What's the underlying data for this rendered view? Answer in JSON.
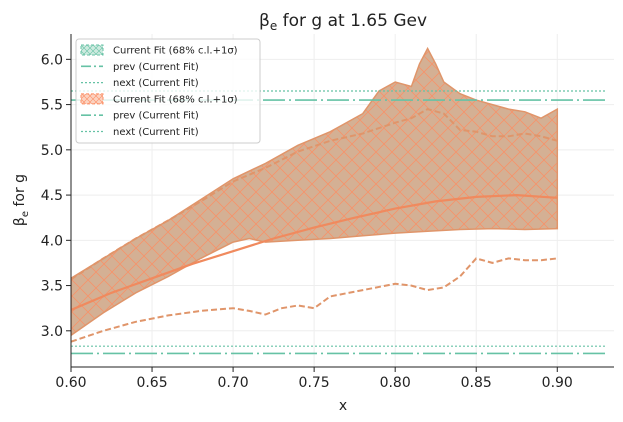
{
  "chart_data": {
    "type": "area",
    "title": "β_e for g at 1.65 Gev",
    "title_main": "β",
    "title_sub": "e",
    "title_rest": " for g at 1.65 Gev",
    "xlabel": "x",
    "ylabel_main": "β",
    "ylabel_sub": "e",
    "ylabel_rest": " for g",
    "xlim": [
      0.6,
      0.935
    ],
    "ylim": [
      2.6,
      6.28
    ],
    "grid": true,
    "legend_placement": "top-left",
    "x_ticks": [
      "0.60",
      "0.65",
      "0.70",
      "0.75",
      "0.80",
      "0.85",
      "0.90"
    ],
    "y_ticks": [
      "3.0",
      "3.5",
      "4.0",
      "4.5",
      "5.0",
      "5.5",
      "6.0"
    ],
    "legend": [
      {
        "label": "Current Fit (68% c.l.+1σ)",
        "kind": "band",
        "color": "#66c2a5"
      },
      {
        "label": "prev (Current Fit)",
        "kind": "dashdot",
        "color": "#66c2a5"
      },
      {
        "label": "next (Current Fit)",
        "kind": "dotted",
        "color": "#66c2a5"
      },
      {
        "label": "Current Fit (68% c.l.+1σ)",
        "kind": "band",
        "color": "#fc8d62"
      },
      {
        "label": "prev (Current Fit)",
        "kind": "dashdot",
        "color": "#66c2a5"
      },
      {
        "label": "next (Current Fit)",
        "kind": "dotted",
        "color": "#66c2a5"
      }
    ],
    "colors": {
      "teal": "#66c2a5",
      "orange": "#fc8d62",
      "band_fill": "#d4b094",
      "band_edge": "#e0956a",
      "dashed": "#e0956a"
    },
    "series": [
      {
        "role": "central-fit",
        "x": [
          0.6,
          0.625,
          0.65,
          0.675,
          0.7,
          0.725,
          0.75,
          0.775,
          0.8,
          0.825,
          0.85,
          0.875,
          0.9
        ],
        "values": [
          3.23,
          3.42,
          3.58,
          3.74,
          3.88,
          4.02,
          4.14,
          4.25,
          4.35,
          4.43,
          4.48,
          4.5,
          4.47
        ]
      },
      {
        "role": "band-upper",
        "x": [
          0.6,
          0.62,
          0.64,
          0.66,
          0.68,
          0.7,
          0.72,
          0.74,
          0.76,
          0.78,
          0.79,
          0.8,
          0.81,
          0.815,
          0.82,
          0.825,
          0.83,
          0.84,
          0.85,
          0.86,
          0.87,
          0.88,
          0.89,
          0.9
        ],
        "values": [
          3.58,
          3.8,
          4.02,
          4.22,
          4.45,
          4.68,
          4.85,
          5.05,
          5.2,
          5.4,
          5.65,
          5.75,
          5.7,
          5.95,
          6.12,
          5.95,
          5.75,
          5.62,
          5.55,
          5.5,
          5.45,
          5.42,
          5.35,
          5.45
        ]
      },
      {
        "role": "band-lower",
        "x": [
          0.6,
          0.62,
          0.64,
          0.66,
          0.68,
          0.7,
          0.71,
          0.72,
          0.74,
          0.76,
          0.78,
          0.8,
          0.82,
          0.84,
          0.86,
          0.88,
          0.9
        ],
        "values": [
          2.95,
          3.2,
          3.42,
          3.6,
          3.8,
          3.98,
          4.02,
          3.98,
          4.0,
          4.02,
          4.05,
          4.08,
          4.1,
          4.12,
          4.13,
          4.12,
          4.13
        ]
      },
      {
        "role": "dashed-upper",
        "x": [
          0.6,
          0.62,
          0.64,
          0.66,
          0.68,
          0.7,
          0.72,
          0.74,
          0.76,
          0.78,
          0.8,
          0.81,
          0.82,
          0.83,
          0.84,
          0.85,
          0.86,
          0.87,
          0.88,
          0.89,
          0.9
        ],
        "values": [
          3.57,
          3.8,
          4.02,
          4.22,
          4.43,
          4.65,
          4.8,
          4.98,
          5.1,
          5.18,
          5.3,
          5.35,
          5.45,
          5.4,
          5.22,
          5.2,
          5.15,
          5.15,
          5.18,
          5.15,
          5.1
        ]
      },
      {
        "role": "dashed-lower",
        "x": [
          0.6,
          0.62,
          0.64,
          0.66,
          0.68,
          0.7,
          0.71,
          0.72,
          0.73,
          0.74,
          0.75,
          0.76,
          0.78,
          0.8,
          0.81,
          0.82,
          0.83,
          0.84,
          0.85,
          0.86,
          0.87,
          0.88,
          0.89,
          0.9
        ],
        "values": [
          2.88,
          3.0,
          3.1,
          3.17,
          3.22,
          3.25,
          3.22,
          3.18,
          3.25,
          3.28,
          3.25,
          3.38,
          3.45,
          3.52,
          3.5,
          3.45,
          3.48,
          3.6,
          3.8,
          3.75,
          3.8,
          3.78,
          3.78,
          3.8
        ]
      },
      {
        "role": "reference-lines",
        "color": "#66c2a5",
        "x": [
          0.6,
          0.93
        ],
        "dashdot_upper": 5.55,
        "dotted_upper": 5.65,
        "dashdot_lower": 2.75,
        "dotted_lower": 2.83
      }
    ]
  }
}
